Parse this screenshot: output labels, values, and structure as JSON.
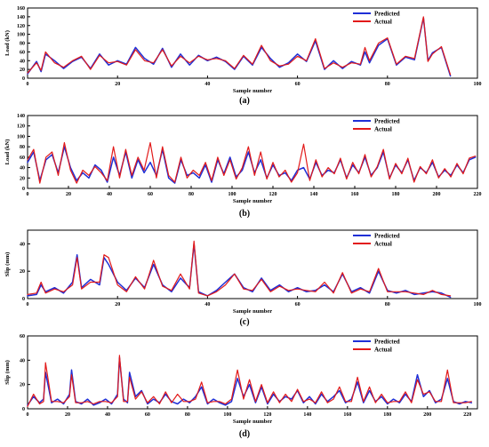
{
  "colors": {
    "predicted": "#1f2fd6",
    "actual": "#e21a1a",
    "axis": "#000000"
  },
  "panels": [
    {
      "caption": "(a)"
    },
    {
      "caption": "(b)"
    },
    {
      "caption": "(c)"
    },
    {
      "caption": "(d)"
    }
  ],
  "chart_data": [
    {
      "type": "line",
      "caption": "(a)",
      "xlabel": "Sample number",
      "ylabel": "Load (kN)",
      "xlim": [
        0,
        100
      ],
      "ylim": [
        0,
        160
      ],
      "xticks": [
        0,
        20,
        40,
        60,
        80,
        100
      ],
      "yticks": [
        0,
        20,
        40,
        60,
        80,
        100,
        120,
        140,
        160
      ],
      "grid": false,
      "legend_position": "top-right",
      "series": [
        {
          "name": "Predicted",
          "x": [
            0,
            2,
            3,
            4,
            6,
            8,
            10,
            12,
            14,
            16,
            18,
            20,
            22,
            24,
            26,
            28,
            30,
            32,
            34,
            36,
            38,
            40,
            42,
            44,
            46,
            48,
            50,
            52,
            54,
            56,
            58,
            60,
            62,
            64,
            66,
            68,
            70,
            72,
            74,
            75,
            76,
            78,
            80,
            82,
            84,
            86,
            88,
            89,
            90,
            92,
            94
          ],
          "y": [
            10,
            38,
            15,
            55,
            40,
            22,
            38,
            48,
            22,
            55,
            30,
            40,
            32,
            70,
            45,
            32,
            68,
            25,
            55,
            30,
            52,
            40,
            48,
            38,
            20,
            50,
            30,
            70,
            45,
            25,
            35,
            55,
            38,
            85,
            20,
            40,
            22,
            38,
            30,
            60,
            35,
            75,
            90,
            30,
            48,
            42,
            138,
            40,
            58,
            70,
            5
          ]
        },
        {
          "name": "Actual",
          "x": [
            0,
            2,
            3,
            4,
            6,
            8,
            10,
            12,
            14,
            16,
            18,
            20,
            22,
            24,
            26,
            28,
            30,
            32,
            34,
            36,
            38,
            40,
            42,
            44,
            46,
            48,
            50,
            52,
            54,
            56,
            58,
            60,
            62,
            64,
            66,
            68,
            70,
            72,
            74,
            75,
            76,
            78,
            80,
            82,
            84,
            86,
            88,
            89,
            90,
            92,
            94
          ],
          "y": [
            12,
            35,
            18,
            60,
            35,
            25,
            40,
            50,
            20,
            52,
            35,
            38,
            30,
            65,
            40,
            35,
            65,
            28,
            50,
            35,
            50,
            42,
            45,
            40,
            22,
            52,
            32,
            75,
            40,
            28,
            32,
            50,
            40,
            90,
            22,
            35,
            25,
            35,
            32,
            70,
            40,
            80,
            92,
            32,
            50,
            45,
            140,
            38,
            55,
            72,
            8
          ]
        }
      ]
    },
    {
      "type": "line",
      "caption": "(b)",
      "xlabel": "Sample number",
      "ylabel": "Load (kN)",
      "xlim": [
        0,
        220
      ],
      "ylim": [
        0,
        140
      ],
      "xticks": [
        0,
        20,
        40,
        60,
        80,
        100,
        120,
        140,
        160,
        180,
        200,
        220
      ],
      "yticks": [
        0,
        20,
        40,
        60,
        80,
        100,
        120,
        140
      ],
      "grid": false,
      "legend_position": "top-right",
      "series": [
        {
          "name": "Predicted",
          "x": [
            0,
            3,
            6,
            9,
            12,
            15,
            18,
            21,
            24,
            27,
            30,
            33,
            36,
            39,
            42,
            45,
            48,
            51,
            54,
            57,
            60,
            63,
            66,
            69,
            72,
            75,
            78,
            81,
            84,
            87,
            90,
            93,
            96,
            99,
            102,
            105,
            108,
            111,
            114,
            117,
            120,
            123,
            126,
            129,
            132,
            135,
            138,
            141,
            144,
            147,
            150,
            153,
            156,
            159,
            162,
            165,
            168,
            171,
            174,
            177,
            180,
            183,
            186,
            189,
            192,
            195,
            198,
            201,
            204,
            207,
            210,
            213,
            216,
            219
          ],
          "y": [
            50,
            70,
            15,
            55,
            65,
            30,
            80,
            40,
            15,
            30,
            20,
            45,
            35,
            12,
            60,
            25,
            70,
            20,
            55,
            30,
            50,
            25,
            75,
            20,
            10,
            55,
            25,
            30,
            20,
            45,
            12,
            55,
            28,
            60,
            22,
            35,
            70,
            30,
            55,
            20,
            45,
            25,
            30,
            15,
            35,
            40,
            18,
            50,
            25,
            35,
            30,
            55,
            20,
            45,
            30,
            60,
            25,
            40,
            70,
            20,
            45,
            30,
            55,
            15,
            40,
            30,
            50,
            22,
            35,
            25,
            45,
            30,
            55,
            60
          ]
        },
        {
          "name": "Actual",
          "x": [
            0,
            3,
            6,
            9,
            12,
            15,
            18,
            21,
            24,
            27,
            30,
            33,
            36,
            39,
            42,
            45,
            48,
            51,
            54,
            57,
            60,
            63,
            66,
            69,
            72,
            75,
            78,
            81,
            84,
            87,
            90,
            93,
            96,
            99,
            102,
            105,
            108,
            111,
            114,
            117,
            120,
            123,
            126,
            129,
            132,
            135,
            138,
            141,
            144,
            147,
            150,
            153,
            156,
            159,
            162,
            165,
            168,
            171,
            174,
            177,
            180,
            183,
            186,
            189,
            192,
            195,
            198,
            201,
            204,
            207,
            210,
            213,
            216,
            219
          ],
          "y": [
            55,
            75,
            10,
            60,
            70,
            25,
            88,
            35,
            10,
            35,
            25,
            42,
            30,
            15,
            80,
            20,
            75,
            25,
            60,
            35,
            88,
            20,
            80,
            25,
            12,
            60,
            20,
            35,
            25,
            50,
            15,
            60,
            25,
            55,
            18,
            40,
            80,
            25,
            70,
            18,
            50,
            22,
            35,
            12,
            30,
            85,
            15,
            55,
            22,
            40,
            28,
            58,
            18,
            50,
            28,
            65,
            22,
            42,
            75,
            18,
            48,
            28,
            58,
            12,
            42,
            28,
            55,
            20,
            38,
            22,
            48,
            28,
            58,
            62
          ]
        }
      ]
    },
    {
      "type": "line",
      "caption": "(c)",
      "xlabel": "Sample number",
      "ylabel": "Slip (mm)",
      "xlim": [
        0,
        100
      ],
      "ylim": [
        0,
        50
      ],
      "xticks": [
        0,
        20,
        40,
        60,
        80,
        100
      ],
      "yticks": [
        0,
        20,
        40
      ],
      "grid": false,
      "legend_position": "top-right",
      "series": [
        {
          "name": "Predicted",
          "x": [
            0,
            2,
            3,
            4,
            6,
            8,
            10,
            11,
            12,
            14,
            16,
            17,
            18,
            20,
            22,
            24,
            26,
            28,
            30,
            32,
            34,
            36,
            37,
            38,
            40,
            42,
            44,
            46,
            48,
            50,
            52,
            54,
            56,
            58,
            60,
            62,
            64,
            66,
            68,
            70,
            72,
            74,
            76,
            78,
            80,
            82,
            84,
            86,
            88,
            90,
            92,
            94
          ],
          "y": [
            2,
            3,
            10,
            5,
            8,
            4,
            12,
            32,
            8,
            14,
            10,
            30,
            25,
            12,
            6,
            15,
            8,
            25,
            10,
            5,
            15,
            8,
            40,
            5,
            2,
            6,
            12,
            18,
            8,
            5,
            15,
            6,
            10,
            5,
            8,
            5,
            6,
            10,
            5,
            18,
            5,
            8,
            4,
            20,
            6,
            4,
            6,
            3,
            4,
            5,
            4,
            1
          ]
        },
        {
          "name": "Actual",
          "x": [
            0,
            2,
            3,
            4,
            6,
            8,
            10,
            11,
            12,
            14,
            16,
            17,
            18,
            20,
            22,
            24,
            26,
            28,
            30,
            32,
            34,
            36,
            37,
            38,
            40,
            42,
            44,
            46,
            48,
            50,
            52,
            54,
            56,
            58,
            60,
            62,
            64,
            66,
            68,
            70,
            72,
            74,
            76,
            78,
            80,
            82,
            84,
            86,
            88,
            90,
            92,
            94
          ],
          "y": [
            3,
            4,
            12,
            4,
            7,
            5,
            10,
            30,
            7,
            12,
            12,
            32,
            30,
            10,
            5,
            16,
            7,
            28,
            9,
            6,
            18,
            7,
            42,
            4,
            2,
            5,
            10,
            18,
            7,
            6,
            14,
            5,
            9,
            6,
            7,
            6,
            5,
            12,
            4,
            19,
            4,
            7,
            5,
            22,
            5,
            5,
            5,
            4,
            3,
            6,
            3,
            2
          ]
        }
      ]
    },
    {
      "type": "line",
      "caption": "(d)",
      "xlabel": "Sample number",
      "ylabel": "Slip (mm)",
      "xlim": [
        0,
        225
      ],
      "ylim": [
        0,
        60
      ],
      "xticks": [
        0,
        20,
        40,
        60,
        80,
        100,
        120,
        140,
        160,
        180,
        200,
        220
      ],
      "yticks": [
        0,
        20,
        40,
        60
      ],
      "grid": false,
      "legend_position": "top-right",
      "series": [
        {
          "name": "Predicted",
          "x": [
            0,
            3,
            6,
            8,
            9,
            12,
            15,
            18,
            21,
            22,
            24,
            27,
            30,
            33,
            36,
            39,
            42,
            45,
            46,
            48,
            50,
            51,
            54,
            57,
            60,
            63,
            66,
            69,
            72,
            75,
            78,
            81,
            84,
            87,
            90,
            93,
            96,
            99,
            102,
            105,
            108,
            111,
            114,
            117,
            120,
            123,
            126,
            129,
            132,
            135,
            138,
            141,
            144,
            147,
            150,
            153,
            156,
            159,
            162,
            165,
            168,
            171,
            174,
            177,
            180,
            183,
            186,
            189,
            192,
            195,
            198,
            201,
            204,
            207,
            210,
            213,
            216,
            219,
            222
          ],
          "y": [
            3,
            10,
            5,
            8,
            30,
            5,
            8,
            4,
            12,
            32,
            6,
            4,
            8,
            3,
            5,
            8,
            4,
            12,
            42,
            8,
            5,
            30,
            10,
            15,
            4,
            8,
            5,
            12,
            6,
            4,
            8,
            5,
            10,
            18,
            4,
            8,
            5,
            3,
            6,
            25,
            10,
            20,
            5,
            18,
            4,
            12,
            6,
            10,
            8,
            15,
            5,
            10,
            4,
            12,
            6,
            10,
            15,
            5,
            8,
            22,
            5,
            15,
            6,
            10,
            4,
            8,
            5,
            12,
            6,
            28,
            10,
            15,
            5,
            8,
            25,
            6,
            4,
            6,
            5
          ]
        },
        {
          "name": "Actual",
          "x": [
            0,
            3,
            6,
            8,
            9,
            12,
            15,
            18,
            21,
            22,
            24,
            27,
            30,
            33,
            36,
            39,
            42,
            45,
            46,
            48,
            50,
            51,
            54,
            57,
            60,
            63,
            66,
            69,
            72,
            75,
            78,
            81,
            84,
            87,
            90,
            93,
            96,
            99,
            102,
            105,
            108,
            111,
            114,
            117,
            120,
            123,
            126,
            129,
            132,
            135,
            138,
            141,
            144,
            147,
            150,
            153,
            156,
            159,
            162,
            165,
            168,
            171,
            174,
            177,
            180,
            183,
            186,
            189,
            192,
            195,
            198,
            201,
            204,
            207,
            210,
            213,
            216,
            219,
            222
          ],
          "y": [
            2,
            12,
            4,
            6,
            38,
            6,
            6,
            5,
            10,
            28,
            5,
            5,
            6,
            4,
            6,
            6,
            5,
            10,
            44,
            6,
            6,
            26,
            8,
            14,
            5,
            10,
            4,
            14,
            5,
            12,
            6,
            6,
            8,
            22,
            5,
            6,
            6,
            4,
            8,
            32,
            8,
            24,
            6,
            20,
            5,
            14,
            5,
            12,
            6,
            16,
            6,
            8,
            5,
            14,
            5,
            8,
            18,
            6,
            6,
            26,
            6,
            18,
            5,
            12,
            5,
            6,
            6,
            14,
            5,
            24,
            12,
            14,
            6,
            6,
            32,
            5,
            5,
            5,
            6
          ]
        }
      ]
    }
  ]
}
